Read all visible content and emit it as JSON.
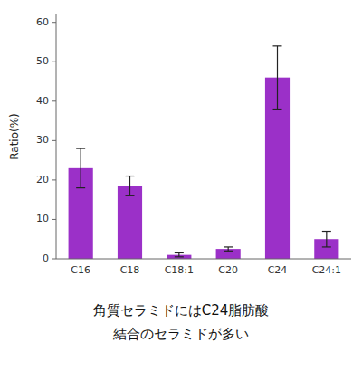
{
  "chart_data": {
    "type": "bar",
    "categories": [
      "C16",
      "C18",
      "C18:1",
      "C20",
      "C24",
      "C24:1"
    ],
    "values": [
      23.0,
      18.5,
      1.0,
      2.5,
      46.0,
      5.0
    ],
    "errors": [
      5.0,
      2.5,
      0.5,
      0.5,
      8.0,
      2.0
    ],
    "color": "#9B30C8",
    "ylabel": "Ratio(%)",
    "ylim": [
      0,
      62
    ],
    "yticks": [
      0,
      10,
      20,
      30,
      40,
      50,
      60
    ],
    "grid": false,
    "annotations": [
      "角質セラミドにはC24脂肪酸",
      "結合のセラミドが多い"
    ]
  }
}
